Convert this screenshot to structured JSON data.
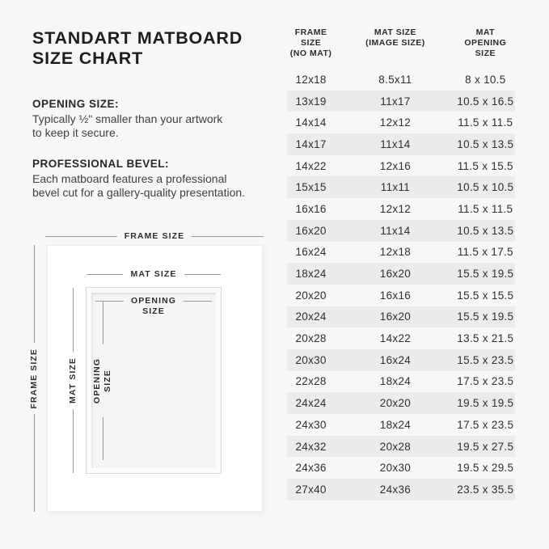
{
  "title": "STANDART MATBOARD\nSIZE CHART",
  "sections": {
    "opening": {
      "heading": "OPENING SIZE:",
      "body": "Typically ½\" smaller than your artwork\nto keep it secure."
    },
    "bevel": {
      "heading": "PROFESSIONAL BEVEL:",
      "body": "Each matboard features a professional\nbevel cut for a gallery-quality presentation."
    }
  },
  "diagram": {
    "frame_label_top": "FRAME SIZE",
    "mat_label_top": "MAT SIZE",
    "opening_label": "OPENING\nSIZE",
    "frame_label_side": "FRAME SIZE",
    "mat_label_side": "MAT SIZE",
    "opening_label_side": "OPENING\nSIZE"
  },
  "table": {
    "headers": [
      "FRAME SIZE\n(NO MAT)",
      "MAT SIZE\n(IMAGE SIZE)",
      "MAT OPENING\nSIZE"
    ],
    "rows": [
      [
        "12x18",
        "8.5x11",
        "8 x 10.5"
      ],
      [
        "13x19",
        "11x17",
        "10.5 x 16.5"
      ],
      [
        "14x14",
        "12x12",
        "11.5 x 11.5"
      ],
      [
        "14x17",
        "11x14",
        "10.5 x 13.5"
      ],
      [
        "14x22",
        "12x16",
        "11.5 x 15.5"
      ],
      [
        "15x15",
        "11x11",
        "10.5 x 10.5"
      ],
      [
        "16x16",
        "12x12",
        "11.5 x 11.5"
      ],
      [
        "16x20",
        "11x14",
        "10.5 x 13.5"
      ],
      [
        "16x24",
        "12x18",
        "11.5 x 17.5"
      ],
      [
        "18x24",
        "16x20",
        "15.5 x 19.5"
      ],
      [
        "20x20",
        "16x16",
        "15.5 x 15.5"
      ],
      [
        "20x24",
        "16x20",
        "15.5 x 19.5"
      ],
      [
        "20x28",
        "14x22",
        "13.5 x 21.5"
      ],
      [
        "20x30",
        "16x24",
        "15.5 x 23.5"
      ],
      [
        "22x28",
        "18x24",
        "17.5 x 23.5"
      ],
      [
        "24x24",
        "20x20",
        "19.5 x 19.5"
      ],
      [
        "24x30",
        "18x24",
        "17.5 x 23.5"
      ],
      [
        "24x32",
        "20x28",
        "19.5 x 27.5"
      ],
      [
        "24x36",
        "20x30",
        "19.5 x 29.5"
      ],
      [
        "27x40",
        "24x36",
        "23.5 x 35.5"
      ]
    ]
  },
  "colors": {
    "background": "#f7f7f5",
    "row_stripe": "#ebebe9",
    "frame_fill": "#ffffff",
    "mat_fill": "#f5f5f3",
    "line": "#9b9b99",
    "text_primary": "#1d1d1d",
    "text_body": "#3f3f3f"
  }
}
